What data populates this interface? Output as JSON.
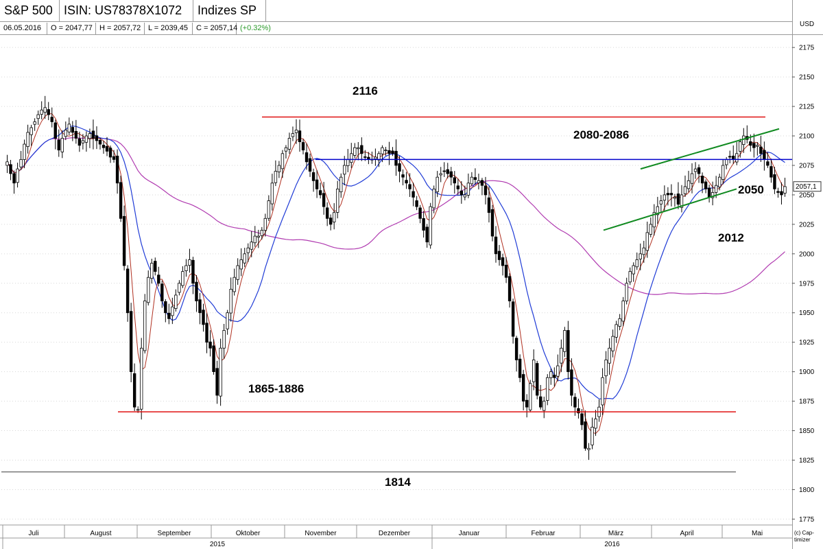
{
  "header": {
    "index_name": "S&P 500",
    "isin": "ISIN: US78378X1072",
    "category": "Indizes SP",
    "currency": "USD"
  },
  "quote": {
    "date": "06.05.2016",
    "open": "O = 2047,77",
    "high": "H = 2057,72",
    "low": "L = 2039,45",
    "close": "C = 2057,14",
    "change": "(+0.32%)"
  },
  "copyright": "(c) Cap-timizer",
  "colors": {
    "up": "#000000",
    "down": "#000000",
    "ma_short": "#b03020",
    "ma_mid": "#1f3bd6",
    "ma_long": "#b03ab0",
    "resistance": "#e01010",
    "support": "#e01010",
    "blue_level": "#0000cc",
    "channel": "#108a20",
    "base_level": "#777777",
    "change_positive": "#2a9a2a"
  },
  "chart_data": {
    "type": "candlestick",
    "title": "S&P 500",
    "ylabel": "USD",
    "ylim": [
      1770,
      2185
    ],
    "y_ticks": [
      1775,
      1800,
      1825,
      1850,
      1875,
      1900,
      1925,
      1950,
      1975,
      2000,
      2025,
      2050,
      2075,
      2100,
      2125,
      2150,
      2175
    ],
    "month_labels": [
      "Juli",
      "August",
      "September",
      "Oktober",
      "November",
      "Dezember",
      "Januar",
      "Februar",
      "März",
      "April",
      "Mai"
    ],
    "year_labels": [
      "2015",
      "2016"
    ],
    "current_price_label": "2057,1",
    "current_price": 2057.1,
    "levels": [
      {
        "label": "2116",
        "value": 2116,
        "kind": "resistance"
      },
      {
        "label": "2080-2086",
        "value": 2080,
        "kind": "blue_level"
      },
      {
        "label": "1865-1886",
        "value": 1866,
        "kind": "support"
      },
      {
        "label": "1814",
        "value": 1815,
        "kind": "base_level"
      }
    ],
    "annotations": [
      {
        "label": "2050",
        "value": 2050
      },
      {
        "label": "2012",
        "value": 2012
      }
    ],
    "closes": [
      2078,
      2068,
      2060,
      2072,
      2080,
      2093,
      2103,
      2107,
      2112,
      2118,
      2122,
      2124,
      2118,
      2112,
      2098,
      2088,
      2098,
      2105,
      2110,
      2103,
      2098,
      2092,
      2096,
      2100,
      2102,
      2098,
      2096,
      2093,
      2090,
      2087,
      2082,
      2080,
      2060,
      2030,
      1990,
      1950,
      1900,
      1870,
      1868,
      1920,
      1960,
      1980,
      1992,
      1985,
      1975,
      1960,
      1950,
      1945,
      1955,
      1965,
      1975,
      1985,
      1990,
      1995,
      1975,
      1960,
      1950,
      1940,
      1925,
      1920,
      1900,
      1880,
      1920,
      1935,
      1950,
      1970,
      1980,
      1990,
      1995,
      2000,
      2005,
      2010,
      2015,
      2015,
      2020,
      2030,
      2045,
      2060,
      2070,
      2075,
      2085,
      2090,
      2098,
      2102,
      2105,
      2095,
      2088,
      2078,
      2070,
      2062,
      2055,
      2050,
      2040,
      2030,
      2025,
      2035,
      2055,
      2065,
      2075,
      2080,
      2085,
      2090,
      2090,
      2085,
      2082,
      2080,
      2080,
      2082,
      2085,
      2090,
      2088,
      2085,
      2085,
      2075,
      2070,
      2065,
      2060,
      2055,
      2048,
      2040,
      2030,
      2020,
      2010,
      2040,
      2055,
      2065,
      2068,
      2070,
      2068,
      2065,
      2060,
      2055,
      2050,
      2050,
      2060,
      2065,
      2063,
      2062,
      2058,
      2050,
      2035,
      2015,
      2000,
      1995,
      1990,
      1980,
      1960,
      1930,
      1910,
      1895,
      1875,
      1870,
      1890,
      1910,
      1880,
      1870,
      1875,
      1895,
      1900,
      1895,
      1905,
      1920,
      1935,
      1900,
      1880,
      1870,
      1865,
      1855,
      1835,
      1835,
      1853,
      1860,
      1870,
      1895,
      1910,
      1920,
      1930,
      1940,
      1945,
      1960,
      1975,
      1985,
      1990,
      1995,
      2000,
      2005,
      2018,
      2025,
      2035,
      2040,
      2045,
      2050,
      2050,
      2050,
      2048,
      2042,
      2050,
      2057,
      2062,
      2068,
      2072,
      2068,
      2060,
      2055,
      2048,
      2052,
      2058,
      2065,
      2075,
      2080,
      2082,
      2080,
      2085,
      2095,
      2100,
      2097,
      2092,
      2090,
      2092,
      2085,
      2080,
      2075,
      2065,
      2055,
      2052,
      2050,
      2057
    ]
  }
}
